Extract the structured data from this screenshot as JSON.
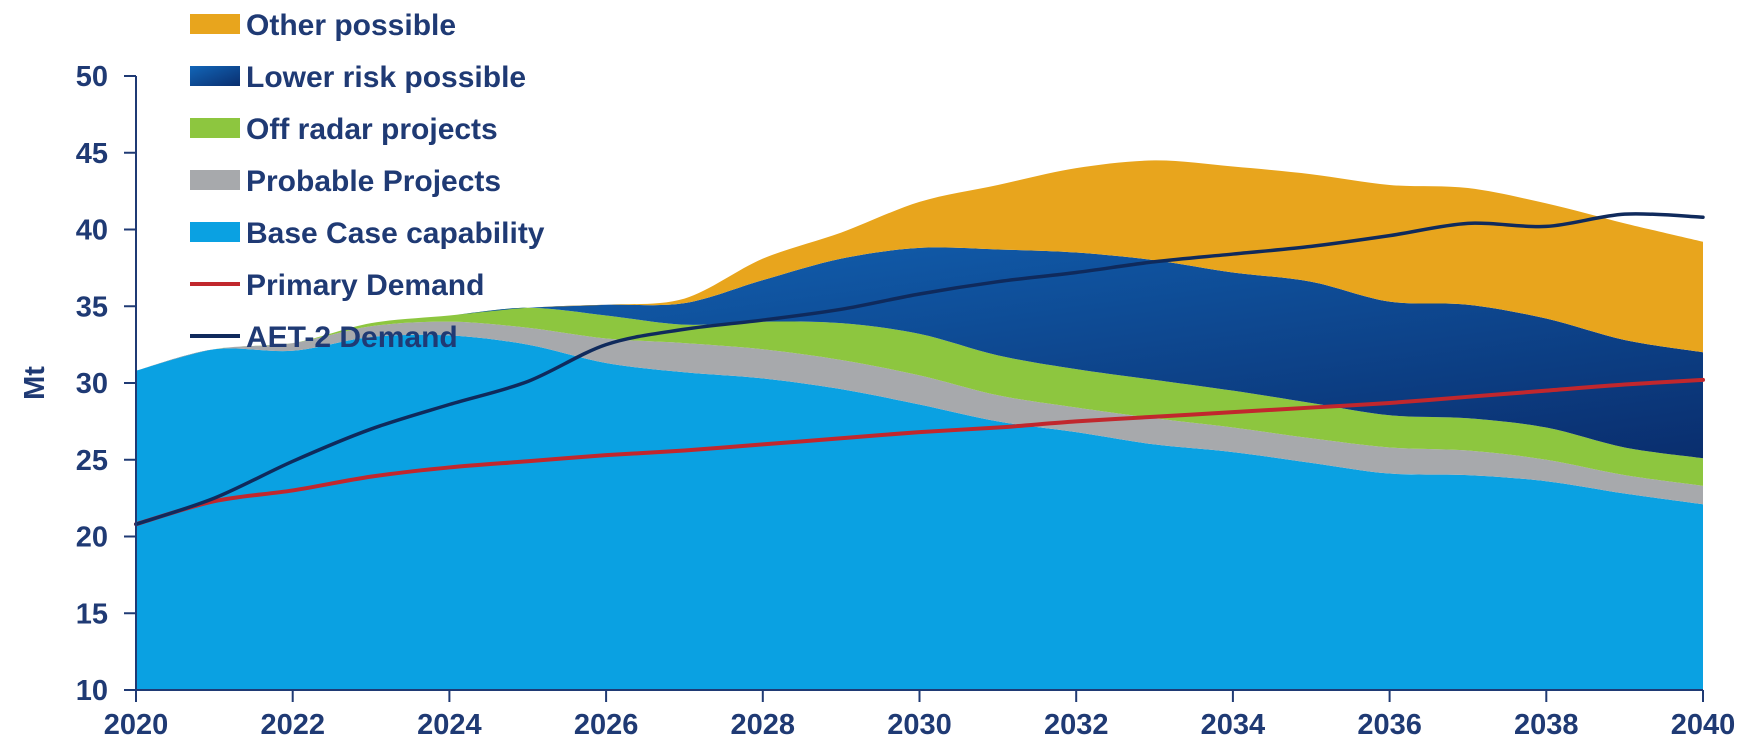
{
  "chart_data": {
    "type": "area",
    "ylabel": "Mt",
    "xlabel": "",
    "ylim": [
      10,
      50
    ],
    "xlim": [
      2020,
      2040
    ],
    "x_ticks": [
      "2020",
      "2022",
      "2024",
      "2026",
      "2028",
      "2030",
      "2032",
      "2034",
      "2036",
      "2038",
      "2040"
    ],
    "y_ticks": [
      "10",
      "15",
      "20",
      "25",
      "30",
      "35",
      "40",
      "45",
      "50"
    ],
    "grid": false,
    "legend_position": "top-left",
    "x": [
      2020,
      2021,
      2022,
      2023,
      2024,
      2025,
      2026,
      2027,
      2028,
      2029,
      2030,
      2031,
      2032,
      2033,
      2034,
      2035,
      2036,
      2037,
      2038,
      2039,
      2040
    ],
    "stacked_series": [
      {
        "name": "Base Case capability",
        "color": "#0aa1e2",
        "values": [
          20.8,
          22.2,
          22.1,
          23.0,
          23.1,
          22.5,
          21.3,
          20.7,
          20.3,
          19.6,
          18.6,
          17.5,
          16.8,
          16.0,
          15.5,
          14.8,
          14.1,
          14.0,
          13.6,
          12.8,
          12.1
        ]
      },
      {
        "name": "Probable Projects",
        "color": "#a7a9ac",
        "values": [
          0.0,
          0.0,
          0.5,
          0.7,
          0.9,
          1.1,
          1.6,
          1.9,
          1.9,
          1.9,
          1.9,
          1.7,
          1.6,
          1.7,
          1.6,
          1.6,
          1.7,
          1.6,
          1.4,
          1.2,
          1.2
        ]
      },
      {
        "name": "Off radar projects",
        "color": "#8dc63f",
        "values": [
          0.0,
          0.0,
          0.0,
          0.2,
          0.4,
          1.3,
          1.5,
          1.2,
          1.8,
          2.4,
          2.7,
          2.6,
          2.5,
          2.5,
          2.4,
          2.3,
          2.1,
          2.1,
          2.1,
          1.8,
          1.8
        ]
      },
      {
        "name": "Lower risk possible",
        "color": "#0c5aa6",
        "values": [
          0.0,
          0.0,
          0.0,
          0.0,
          0.0,
          0.0,
          0.7,
          1.4,
          2.7,
          4.2,
          5.6,
          6.9,
          7.6,
          7.8,
          7.7,
          7.9,
          7.4,
          7.4,
          7.1,
          7.0,
          6.9
        ]
      },
      {
        "name": "Other possible",
        "color": "#e8a51d",
        "values": [
          0.0,
          0.0,
          0.0,
          0.0,
          0.0,
          0.0,
          0.0,
          0.3,
          1.4,
          1.7,
          3.0,
          4.2,
          5.5,
          6.5,
          6.9,
          7.0,
          7.6,
          7.6,
          7.5,
          7.6,
          7.2
        ]
      }
    ],
    "line_series": [
      {
        "name": "Primary Demand",
        "color": "#c1272d",
        "values": [
          20.8,
          22.3,
          23.0,
          23.9,
          24.5,
          24.9,
          25.3,
          25.6,
          26.0,
          26.4,
          26.8,
          27.1,
          27.5,
          27.8,
          28.1,
          28.4,
          28.7,
          29.1,
          29.5,
          29.9,
          30.2
        ]
      },
      {
        "name": "AET-2 Demand",
        "color": "#0f2a5c",
        "values": [
          20.8,
          22.5,
          24.9,
          27.0,
          28.6,
          30.1,
          32.5,
          33.5,
          34.1,
          34.8,
          35.8,
          36.6,
          37.2,
          37.9,
          38.4,
          38.9,
          39.6,
          40.4,
          40.2,
          41.0,
          40.8
        ]
      }
    ],
    "legend": [
      {
        "label": "Other possible",
        "kind": "area",
        "color": "#e8a51d"
      },
      {
        "label": "Lower risk possible",
        "kind": "area",
        "color": "#0c5aa6"
      },
      {
        "label": "Off radar projects",
        "kind": "area",
        "color": "#8dc63f"
      },
      {
        "label": "Probable Projects",
        "kind": "area",
        "color": "#a7a9ac"
      },
      {
        "label": "Base Case capability",
        "kind": "area",
        "color": "#0aa1e2"
      },
      {
        "label": "Primary Demand",
        "kind": "line",
        "color": "#c1272d"
      },
      {
        "label": "AET-2 Demand",
        "kind": "line",
        "color": "#0f2a5c"
      }
    ]
  }
}
